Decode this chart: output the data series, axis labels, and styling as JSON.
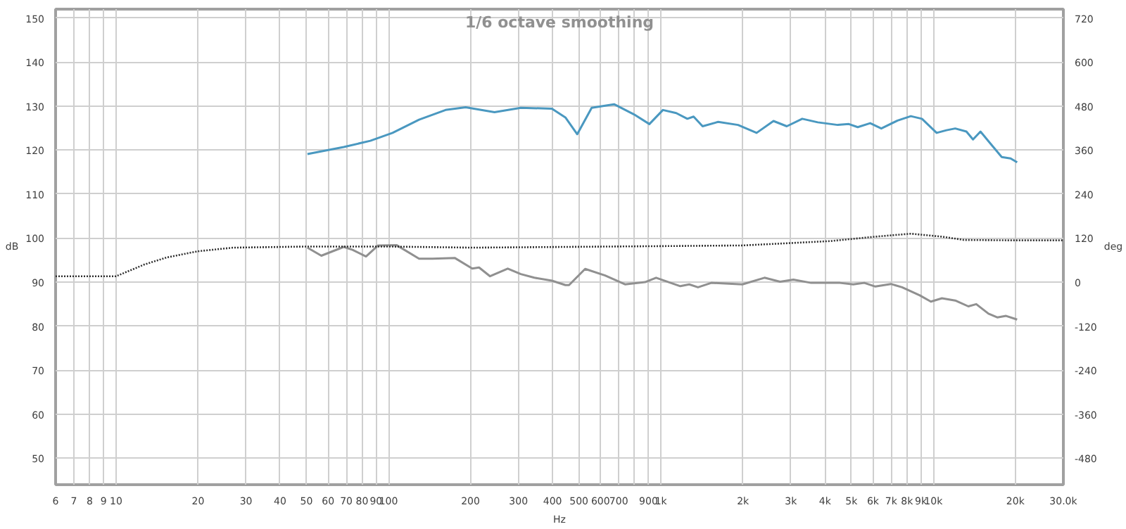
{
  "chart_data": {
    "type": "line",
    "title": "1/6 octave smoothing",
    "xlabel": "Hz",
    "ylabel": "dB",
    "y2label": "deg",
    "log": "x",
    "grid": true,
    "xlim": [
      6,
      30000
    ],
    "ylim": [
      44,
      152
    ],
    "y2lim": [
      -552,
      744
    ],
    "xticks": [
      6,
      7,
      8,
      9,
      10,
      20,
      30,
      40,
      50,
      60,
      70,
      80,
      90,
      100,
      200,
      300,
      400,
      500,
      600,
      700,
      {
        "value": 800,
        "label": null
      },
      900,
      {
        "value": 1000,
        "label": "1k"
      },
      {
        "value": 2000,
        "label": "2k"
      },
      {
        "value": 3000,
        "label": "3k"
      },
      {
        "value": 4000,
        "label": "4k"
      },
      {
        "value": 5000,
        "label": "5k"
      },
      {
        "value": 6000,
        "label": "6k"
      },
      {
        "value": 7000,
        "label": "7k"
      },
      {
        "value": 8000,
        "label": "8k"
      },
      {
        "value": 9000,
        "label": "9k"
      },
      {
        "value": 10000,
        "label": "10k"
      },
      {
        "value": 20000,
        "label": "20k"
      },
      {
        "value": 30000,
        "label": "30.0k"
      }
    ],
    "yticks": [
      50,
      60,
      70,
      80,
      90,
      100,
      110,
      120,
      130,
      140,
      150
    ],
    "y2ticks": [
      -480,
      -360,
      -240,
      -120,
      0,
      120,
      240,
      360,
      480,
      600,
      720
    ],
    "series": [
      {
        "color": "#4a98c0",
        "line_style": "solid",
        "x": [
          50.4,
          68.5,
          85.8,
          103.5,
          129.5,
          162,
          192,
          245,
          306,
          398,
          446,
          493,
          557,
          673,
          796,
          907,
          1017,
          1138,
          1250,
          1318,
          1422,
          1622,
          1919,
          2245,
          2589,
          2897,
          3301,
          3764,
          4457,
          4893,
          5277,
          5862,
          6440,
          7387,
          8265,
          9080,
          10280,
          11170,
          12030,
          13220,
          13980,
          14890,
          16230,
          17820,
          19210,
          20300
        ],
        "values": [
          119.1,
          120.7,
          122.1,
          123.9,
          126.9,
          129.1,
          129.7,
          128.6,
          129.6,
          129.4,
          127.4,
          123.6,
          129.6,
          130.4,
          128.1,
          125.9,
          129.1,
          128.4,
          127.1,
          127.6,
          125.4,
          126.4,
          125.7,
          123.9,
          126.6,
          125.4,
          127.1,
          126.3,
          125.7,
          125.9,
          125.2,
          126.1,
          124.9,
          126.7,
          127.7,
          127.1,
          123.9,
          124.5,
          124.9,
          124.2,
          122.4,
          124.2,
          121.4,
          118.4,
          118.1,
          117.2
        ]
      },
      {
        "color": "#909090",
        "line_style": "solid",
        "axis": "y2",
        "x": [
          50.4,
          56.7,
          68.5,
          73.8,
          82.7,
          91.6,
          107,
          129.5,
          145,
          175,
          203,
          215,
          236,
          274,
          306,
          343,
          398,
          446,
          460,
          527,
          624,
          738,
          874,
          960,
          1178,
          1270,
          1368,
          1531,
          1991,
          2400,
          2737,
          3063,
          3557,
          4539,
          5080,
          5577,
          6124,
          6985,
          7676,
          8916,
          9791,
          10750,
          12030,
          13440,
          14370,
          15930,
          17160,
          18490,
          20300
        ],
        "values": [
          94,
          72,
          96,
          88,
          70,
          100,
          101,
          64,
          64,
          66,
          37,
          40,
          16,
          37,
          22,
          12,
          4,
          -8,
          -8,
          36,
          18,
          -6,
          0,
          12,
          -11,
          -6,
          -14,
          -2,
          -6,
          12,
          1,
          7,
          -2,
          -2,
          -6,
          -2,
          -12,
          -5,
          -14,
          -36,
          -53,
          -44,
          -50,
          -66,
          -60,
          -86,
          -96,
          -92,
          -102
        ]
      },
      {
        "color": "#303030",
        "line_style": "dotted",
        "axis": "y2",
        "x": [
          6,
          10,
          12.7,
          15.3,
          19.9,
          26.9,
          50,
          100,
          203,
          446,
          1991,
          4207,
          6124,
          8265,
          10750,
          12940,
          18840,
          30000
        ],
        "values": [
          16,
          16,
          48,
          67,
          84,
          94,
          97,
          97,
          94,
          96,
          100,
          112,
          124,
          132,
          124,
          115,
          114,
          114
        ]
      }
    ]
  }
}
